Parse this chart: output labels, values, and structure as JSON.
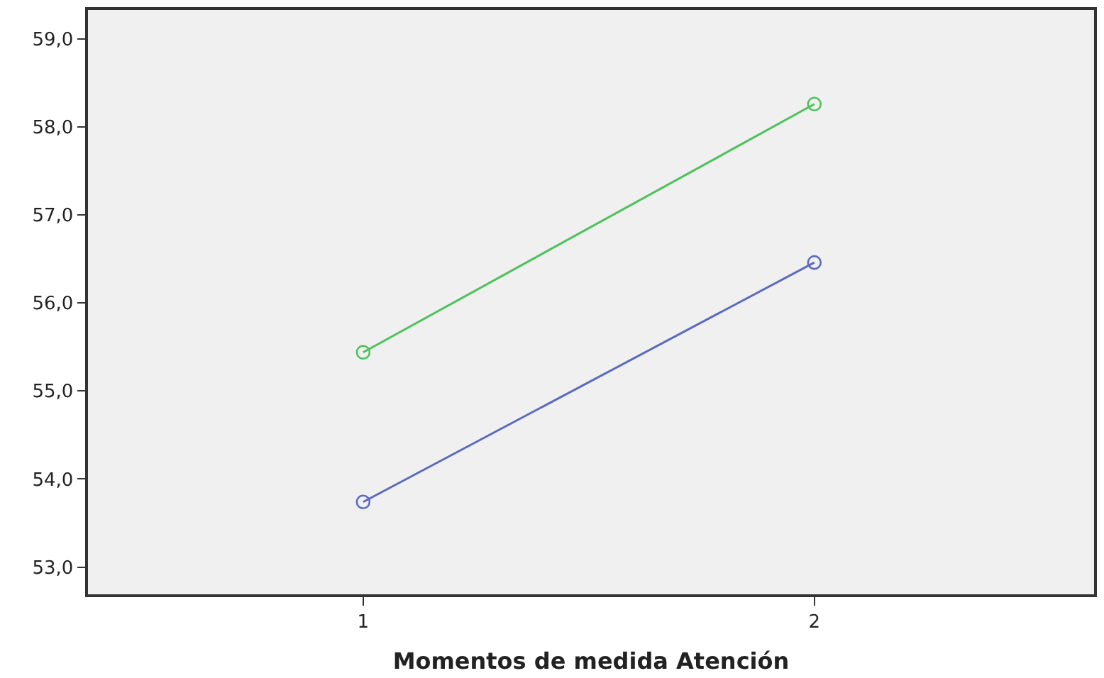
{
  "chart_data": {
    "type": "line",
    "xlabel": "Momentos de medida Atención",
    "x": [
      1,
      2
    ],
    "xlim": [
      0.39,
      2.62
    ],
    "xticks": [
      1,
      2
    ],
    "ylim": [
      52.69,
      59.33
    ],
    "yticks": [
      {
        "value": 53,
        "label": "53,0"
      },
      {
        "value": 54,
        "label": "54,0"
      },
      {
        "value": 55,
        "label": "55,0"
      },
      {
        "value": 56,
        "label": "56,0"
      },
      {
        "value": 57,
        "label": "57,0"
      },
      {
        "value": 58,
        "label": "58,0"
      },
      {
        "value": 59,
        "label": "59,0"
      }
    ],
    "marker": "circle",
    "grid": false,
    "series": [
      {
        "color": "#5a6bbf",
        "values": [
          53.74,
          56.46
        ]
      },
      {
        "color": "#4cc25a",
        "values": [
          55.44,
          58.26
        ]
      }
    ]
  }
}
